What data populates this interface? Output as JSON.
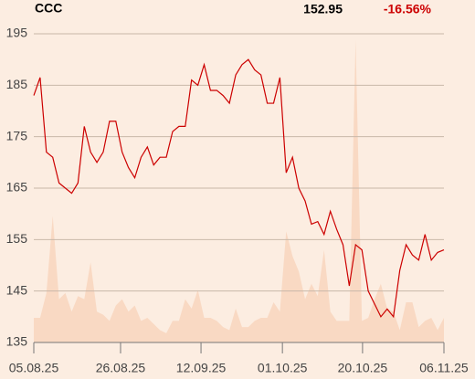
{
  "chart_data": {
    "type": "line",
    "title": "CCC",
    "last_price": "152.95",
    "change": "-16.56%",
    "xlim": [
      0,
      65
    ],
    "xticks": [
      {
        "value": 0,
        "label": "05.08.25"
      },
      {
        "value": 13.75,
        "label": "26.08.25"
      },
      {
        "value": 26.5,
        "label": "12.09.25"
      },
      {
        "value": 39.4,
        "label": "01.10.25"
      },
      {
        "value": 52.1,
        "label": "20.10.25"
      },
      {
        "value": 65,
        "label": "06.11.25"
      }
    ],
    "ylim": [
      135,
      195
    ],
    "yticks": [
      135,
      145,
      155,
      165,
      175,
      185,
      195
    ],
    "y2lim": [
      0,
      100
    ],
    "grid": true,
    "series": [
      {
        "name": "price",
        "color": "#cc0000",
        "values": [
          183,
          186.5,
          172,
          171,
          166,
          165,
          164,
          166,
          177,
          172,
          170,
          172,
          178,
          178,
          172,
          169,
          167,
          171,
          173,
          169.5,
          171,
          171,
          176,
          177,
          177,
          186,
          185,
          189,
          184,
          184,
          183,
          181.5,
          187,
          189,
          190,
          188,
          187,
          181.5,
          181.5,
          186.5,
          168,
          171,
          165,
          162.5,
          158,
          158.5,
          156,
          160.5,
          157,
          154,
          146,
          154,
          153,
          145,
          142.5,
          140,
          141.5,
          140,
          149,
          154,
          152,
          151,
          156,
          151,
          152.5,
          153
        ]
      },
      {
        "name": "volume",
        "color": "#f9d9c3",
        "axis": "y2",
        "values": [
          8,
          8,
          16,
          41,
          14,
          16,
          10,
          15,
          14,
          26,
          10,
          9,
          7,
          12,
          14,
          10,
          12,
          7,
          8,
          6,
          4,
          3,
          7,
          7,
          14,
          11,
          17,
          8,
          8,
          7,
          5,
          4,
          11,
          5,
          5,
          7,
          8,
          8,
          13,
          10,
          36,
          28,
          23,
          14,
          19,
          15,
          30,
          10,
          7,
          7,
          7,
          98,
          7,
          8,
          14,
          19,
          11,
          10,
          4,
          13,
          13,
          5,
          7,
          8,
          4,
          8
        ]
      }
    ]
  }
}
